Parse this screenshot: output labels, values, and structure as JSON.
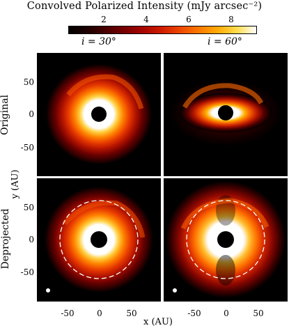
{
  "figure": {
    "title": "Convolved Polarized Intensity (mJy arcsec⁻²)",
    "colorbar": {
      "ticks": [
        "2",
        "4",
        "6",
        "8"
      ],
      "tick_values": [
        2,
        4,
        6,
        8
      ],
      "range": [
        0,
        9.2
      ]
    },
    "columns": [
      {
        "label": "i = 30°"
      },
      {
        "label": "i = 60°"
      }
    ],
    "rows": [
      {
        "label": "Original"
      },
      {
        "label": "Deprojected"
      }
    ],
    "y_axis": {
      "label": "y (AU)",
      "ticks": [
        "50",
        "0",
        "-50"
      ],
      "tick_values": [
        50,
        0,
        -50
      ]
    },
    "x_axis": {
      "label": "x (AU)",
      "ticks": [
        "-50",
        "0",
        "50"
      ],
      "tick_values": [
        -50,
        0,
        50
      ]
    },
    "axis_range_au": [
      -95,
      95
    ],
    "colors": {
      "ring_dashed": "#ffffff",
      "mask": "#000000",
      "beam": "#ffffff"
    }
  }
}
